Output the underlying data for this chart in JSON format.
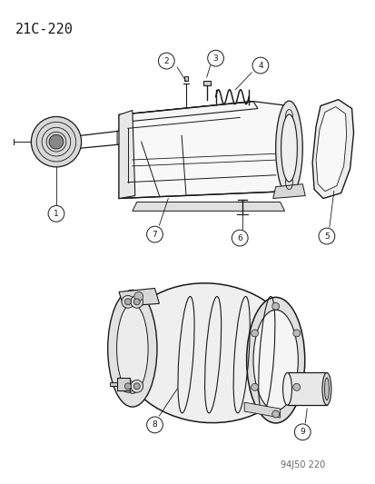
{
  "title": "21C-220",
  "footer": "94J50 220",
  "bg_color": "#ffffff",
  "title_fontsize": 11,
  "footer_fontsize": 7,
  "line_color": "#1a1a1a",
  "fill_light": "#f0f0f0",
  "fill_mid": "#e0e0e0",
  "fill_dark": "#cccccc"
}
